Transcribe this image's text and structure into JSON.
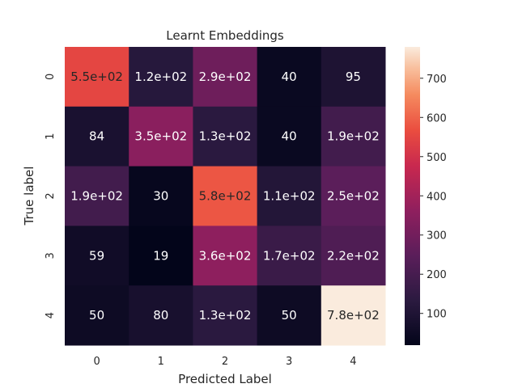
{
  "chart_data": {
    "type": "heatmap",
    "title": "Learnt Embeddings",
    "xlabel": "Predicted Label",
    "ylabel": "True label",
    "x_categories": [
      "0",
      "1",
      "2",
      "3",
      "4"
    ],
    "y_categories": [
      "0",
      "1",
      "2",
      "3",
      "4"
    ],
    "values": [
      [
        550,
        120,
        290,
        40,
        95
      ],
      [
        84,
        350,
        130,
        40,
        190
      ],
      [
        190,
        30,
        580,
        110,
        250
      ],
      [
        59,
        19,
        360,
        170,
        220
      ],
      [
        50,
        80,
        130,
        50,
        780
      ]
    ],
    "cell_labels": [
      [
        "5.5e+02",
        "1.2e+02",
        "2.9e+02",
        "40",
        "95"
      ],
      [
        "84",
        "3.5e+02",
        "1.3e+02",
        "40",
        "1.9e+02"
      ],
      [
        "1.9e+02",
        "30",
        "5.8e+02",
        "1.1e+02",
        "2.5e+02"
      ],
      [
        "59",
        "19",
        "3.6e+02",
        "1.7e+02",
        "2.2e+02"
      ],
      [
        "50",
        "80",
        "1.3e+02",
        "50",
        "7.8e+02"
      ]
    ],
    "colorbar": {
      "range": [
        19,
        780
      ],
      "ticks": [
        100,
        200,
        300,
        400,
        500,
        600,
        700
      ],
      "colormap": "rocket"
    },
    "grid": false
  }
}
